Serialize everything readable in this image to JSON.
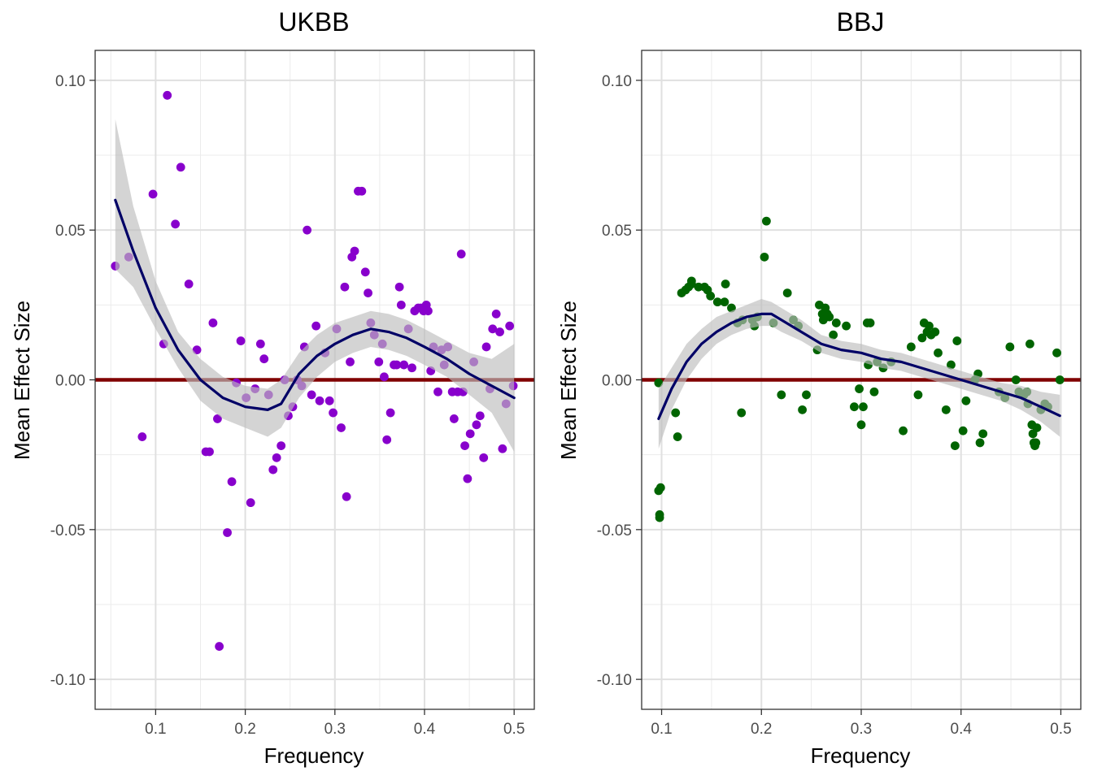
{
  "chart_data": [
    {
      "type": "scatter",
      "title": "UKBB",
      "xlabel": "Frequency",
      "ylabel": "Mean Effect Size",
      "xlim": [
        0.0325,
        0.5225
      ],
      "ylim": [
        -0.11,
        0.11
      ],
      "xticks": [
        "0.1",
        "0.2",
        "0.3",
        "0.4",
        "0.5"
      ],
      "xtick_values": [
        0.1,
        0.2,
        0.3,
        0.4,
        0.5
      ],
      "yticks": [
        "-0.10",
        "-0.05",
        "0.00",
        "0.05",
        "0.10"
      ],
      "ytick_values": [
        -0.1,
        -0.05,
        0.0,
        0.05,
        0.1
      ],
      "grid": true,
      "reference_line": {
        "y": 0.0,
        "color": "#800000"
      },
      "point_color": "#8800cc",
      "smooth_color": "#000066",
      "band_color": "#bdbdbd",
      "points": [
        [
          0.055,
          0.038
        ],
        [
          0.07,
          0.041
        ],
        [
          0.085,
          -0.019
        ],
        [
          0.097,
          0.062
        ],
        [
          0.109,
          0.012
        ],
        [
          0.113,
          0.095
        ],
        [
          0.122,
          0.052
        ],
        [
          0.128,
          0.071
        ],
        [
          0.137,
          0.032
        ],
        [
          0.146,
          0.01
        ],
        [
          0.156,
          -0.024
        ],
        [
          0.16,
          -0.024
        ],
        [
          0.164,
          0.019
        ],
        [
          0.169,
          -0.013
        ],
        [
          0.171,
          -0.089
        ],
        [
          0.18,
          -0.051
        ],
        [
          0.185,
          -0.034
        ],
        [
          0.19,
          -0.001
        ],
        [
          0.195,
          0.013
        ],
        [
          0.201,
          -0.006
        ],
        [
          0.206,
          -0.041
        ],
        [
          0.211,
          -0.003
        ],
        [
          0.217,
          0.012
        ],
        [
          0.221,
          0.007
        ],
        [
          0.226,
          -0.005
        ],
        [
          0.231,
          -0.03
        ],
        [
          0.235,
          -0.026
        ],
        [
          0.24,
          -0.022
        ],
        [
          0.244,
          0.0
        ],
        [
          0.248,
          -0.012
        ],
        [
          0.253,
          -0.009
        ],
        [
          0.258,
          0.0
        ],
        [
          0.263,
          -0.002
        ],
        [
          0.266,
          0.011
        ],
        [
          0.269,
          0.05
        ],
        [
          0.274,
          -0.005
        ],
        [
          0.279,
          0.018
        ],
        [
          0.283,
          -0.007
        ],
        [
          0.289,
          0.009
        ],
        [
          0.294,
          -0.007
        ],
        [
          0.298,
          -0.011
        ],
        [
          0.302,
          0.017
        ],
        [
          0.307,
          -0.016
        ],
        [
          0.311,
          0.031
        ],
        [
          0.313,
          -0.039
        ],
        [
          0.317,
          0.006
        ],
        [
          0.319,
          0.041
        ],
        [
          0.322,
          0.043
        ],
        [
          0.326,
          0.063
        ],
        [
          0.33,
          0.063
        ],
        [
          0.334,
          0.036
        ],
        [
          0.337,
          0.029
        ],
        [
          0.34,
          0.019
        ],
        [
          0.344,
          0.015
        ],
        [
          0.349,
          0.006
        ],
        [
          0.353,
          0.012
        ],
        [
          0.355,
          0.001
        ],
        [
          0.358,
          -0.02
        ],
        [
          0.362,
          -0.011
        ],
        [
          0.366,
          0.005
        ],
        [
          0.369,
          0.005
        ],
        [
          0.372,
          0.031
        ],
        [
          0.374,
          0.025
        ],
        [
          0.377,
          0.005
        ],
        [
          0.382,
          0.017
        ],
        [
          0.386,
          0.004
        ],
        [
          0.389,
          0.023
        ],
        [
          0.393,
          0.024
        ],
        [
          0.396,
          0.024
        ],
        [
          0.399,
          0.023
        ],
        [
          0.402,
          0.025
        ],
        [
          0.404,
          0.023
        ],
        [
          0.407,
          0.003
        ],
        [
          0.41,
          0.011
        ],
        [
          0.415,
          -0.004
        ],
        [
          0.419,
          0.01
        ],
        [
          0.422,
          0.005
        ],
        [
          0.426,
          0.011
        ],
        [
          0.431,
          -0.004
        ],
        [
          0.433,
          -0.013
        ],
        [
          0.437,
          -0.004
        ],
        [
          0.441,
          0.042
        ],
        [
          0.443,
          -0.004
        ],
        [
          0.445,
          -0.022
        ],
        [
          0.448,
          -0.033
        ],
        [
          0.451,
          -0.018
        ],
        [
          0.455,
          0.006
        ],
        [
          0.458,
          -0.015
        ],
        [
          0.462,
          -0.012
        ],
        [
          0.466,
          -0.026
        ],
        [
          0.469,
          0.011
        ],
        [
          0.473,
          -0.003
        ],
        [
          0.476,
          0.017
        ],
        [
          0.48,
          0.022
        ],
        [
          0.484,
          0.016
        ],
        [
          0.487,
          -0.023
        ],
        [
          0.491,
          -0.008
        ],
        [
          0.495,
          0.018
        ],
        [
          0.499,
          -0.002
        ]
      ],
      "smooth": [
        [
          0.055,
          0.06
        ],
        [
          0.075,
          0.043
        ],
        [
          0.1,
          0.024
        ],
        [
          0.125,
          0.01
        ],
        [
          0.15,
          0.0
        ],
        [
          0.175,
          -0.006
        ],
        [
          0.2,
          -0.009
        ],
        [
          0.225,
          -0.01
        ],
        [
          0.24,
          -0.008
        ],
        [
          0.26,
          0.002
        ],
        [
          0.28,
          0.008
        ],
        [
          0.3,
          0.012
        ],
        [
          0.32,
          0.015
        ],
        [
          0.34,
          0.017
        ],
        [
          0.36,
          0.016
        ],
        [
          0.38,
          0.014
        ],
        [
          0.4,
          0.011
        ],
        [
          0.425,
          0.007
        ],
        [
          0.45,
          0.002
        ],
        [
          0.475,
          -0.002
        ],
        [
          0.5,
          -0.006
        ]
      ],
      "band": [
        [
          0.055,
          0.037,
          0.087
        ],
        [
          0.075,
          0.031,
          0.058
        ],
        [
          0.1,
          0.017,
          0.033
        ],
        [
          0.125,
          0.004,
          0.016
        ],
        [
          0.15,
          -0.007,
          0.007
        ],
        [
          0.175,
          -0.013,
          0.001
        ],
        [
          0.2,
          -0.016,
          -0.002
        ],
        [
          0.225,
          -0.019,
          -0.003
        ],
        [
          0.24,
          -0.016,
          0.0
        ],
        [
          0.26,
          -0.006,
          0.009
        ],
        [
          0.28,
          0.001,
          0.015
        ],
        [
          0.3,
          0.006,
          0.019
        ],
        [
          0.32,
          0.009,
          0.021
        ],
        [
          0.34,
          0.011,
          0.023
        ],
        [
          0.36,
          0.01,
          0.022
        ],
        [
          0.38,
          0.008,
          0.02
        ],
        [
          0.4,
          0.005,
          0.017
        ],
        [
          0.425,
          0.001,
          0.013
        ],
        [
          0.45,
          -0.005,
          0.009
        ],
        [
          0.475,
          -0.011,
          0.007
        ],
        [
          0.5,
          -0.024,
          0.012
        ]
      ]
    },
    {
      "type": "scatter",
      "title": "BBJ",
      "xlabel": "Frequency",
      "ylabel": "Mean Effect Size",
      "xlim": [
        0.08,
        0.52
      ],
      "ylim": [
        -0.11,
        0.11
      ],
      "xticks": [
        "0.1",
        "0.2",
        "0.3",
        "0.4",
        "0.5"
      ],
      "xtick_values": [
        0.1,
        0.2,
        0.3,
        0.4,
        0.5
      ],
      "yticks": [
        "-0.10",
        "-0.05",
        "0.00",
        "0.05",
        "0.10"
      ],
      "ytick_values": [
        -0.1,
        -0.05,
        0.0,
        0.05,
        0.1
      ],
      "grid": true,
      "reference_line": {
        "y": 0.0,
        "color": "#800000"
      },
      "point_color": "#006400",
      "smooth_color": "#000066",
      "band_color": "#bdbdbd",
      "points": [
        [
          0.097,
          -0.001
        ],
        [
          0.097,
          -0.037
        ],
        [
          0.098,
          -0.045
        ],
        [
          0.098,
          -0.046
        ],
        [
          0.099,
          -0.036
        ],
        [
          0.114,
          -0.011
        ],
        [
          0.116,
          -0.019
        ],
        [
          0.12,
          0.029
        ],
        [
          0.124,
          0.03
        ],
        [
          0.127,
          0.031
        ],
        [
          0.13,
          0.032
        ],
        [
          0.13,
          0.033
        ],
        [
          0.137,
          0.031
        ],
        [
          0.143,
          0.031
        ],
        [
          0.146,
          0.03
        ],
        [
          0.149,
          0.028
        ],
        [
          0.156,
          0.026
        ],
        [
          0.163,
          0.026
        ],
        [
          0.164,
          0.032
        ],
        [
          0.17,
          0.024
        ],
        [
          0.176,
          0.019
        ],
        [
          0.18,
          -0.011
        ],
        [
          0.181,
          0.02
        ],
        [
          0.191,
          0.02
        ],
        [
          0.193,
          0.018
        ],
        [
          0.196,
          0.021
        ],
        [
          0.203,
          0.041
        ],
        [
          0.205,
          0.053
        ],
        [
          0.212,
          0.019
        ],
        [
          0.22,
          -0.005
        ],
        [
          0.226,
          0.029
        ],
        [
          0.232,
          0.02
        ],
        [
          0.237,
          0.018
        ],
        [
          0.241,
          -0.01
        ],
        [
          0.245,
          -0.005
        ],
        [
          0.256,
          0.01
        ],
        [
          0.258,
          0.025
        ],
        [
          0.261,
          0.022
        ],
        [
          0.262,
          0.02
        ],
        [
          0.264,
          0.024
        ],
        [
          0.266,
          0.022
        ],
        [
          0.268,
          0.021
        ],
        [
          0.272,
          0.015
        ],
        [
          0.275,
          0.019
        ],
        [
          0.285,
          0.018
        ],
        [
          0.293,
          -0.009
        ],
        [
          0.298,
          -0.003
        ],
        [
          0.3,
          -0.015
        ],
        [
          0.302,
          -0.009
        ],
        [
          0.306,
          0.019
        ],
        [
          0.307,
          0.005
        ],
        [
          0.309,
          0.019
        ],
        [
          0.313,
          -0.004
        ],
        [
          0.316,
          0.006
        ],
        [
          0.322,
          0.004
        ],
        [
          0.33,
          0.006
        ],
        [
          0.342,
          -0.017
        ],
        [
          0.35,
          0.011
        ],
        [
          0.357,
          -0.005
        ],
        [
          0.361,
          0.014
        ],
        [
          0.363,
          0.019
        ],
        [
          0.366,
          0.016
        ],
        [
          0.368,
          0.018
        ],
        [
          0.37,
          0.015
        ],
        [
          0.374,
          0.016
        ],
        [
          0.377,
          0.009
        ],
        [
          0.385,
          -0.01
        ],
        [
          0.39,
          0.005
        ],
        [
          0.394,
          -0.022
        ],
        [
          0.396,
          0.013
        ],
        [
          0.402,
          -0.017
        ],
        [
          0.405,
          -0.007
        ],
        [
          0.414,
          0.0
        ],
        [
          0.417,
          0.002
        ],
        [
          0.419,
          -0.021
        ],
        [
          0.422,
          -0.018
        ],
        [
          0.438,
          -0.004
        ],
        [
          0.444,
          -0.006
        ],
        [
          0.449,
          0.011
        ],
        [
          0.455,
          0.0
        ],
        [
          0.458,
          -0.004
        ],
        [
          0.463,
          -0.005
        ],
        [
          0.466,
          -0.004
        ],
        [
          0.467,
          -0.008
        ],
        [
          0.469,
          0.012
        ],
        [
          0.471,
          -0.015
        ],
        [
          0.472,
          -0.018
        ],
        [
          0.473,
          -0.021
        ],
        [
          0.474,
          -0.022
        ],
        [
          0.475,
          -0.021
        ],
        [
          0.476,
          -0.016
        ],
        [
          0.48,
          -0.01
        ],
        [
          0.484,
          -0.008
        ],
        [
          0.487,
          -0.009
        ],
        [
          0.496,
          0.009
        ],
        [
          0.499,
          0.0
        ]
      ],
      "smooth": [
        [
          0.097,
          -0.013
        ],
        [
          0.11,
          -0.003
        ],
        [
          0.125,
          0.006
        ],
        [
          0.14,
          0.012
        ],
        [
          0.155,
          0.016
        ],
        [
          0.17,
          0.019
        ],
        [
          0.185,
          0.021
        ],
        [
          0.2,
          0.022
        ],
        [
          0.21,
          0.022
        ],
        [
          0.22,
          0.02
        ],
        [
          0.24,
          0.016
        ],
        [
          0.26,
          0.012
        ],
        [
          0.28,
          0.01
        ],
        [
          0.3,
          0.009
        ],
        [
          0.32,
          0.007
        ],
        [
          0.34,
          0.006
        ],
        [
          0.36,
          0.004
        ],
        [
          0.38,
          0.002
        ],
        [
          0.4,
          0.0
        ],
        [
          0.42,
          -0.002
        ],
        [
          0.44,
          -0.004
        ],
        [
          0.46,
          -0.006
        ],
        [
          0.48,
          -0.009
        ],
        [
          0.499,
          -0.012
        ]
      ],
      "band": [
        [
          0.097,
          -0.023,
          -0.003
        ],
        [
          0.11,
          -0.01,
          0.004
        ],
        [
          0.125,
          0.0,
          0.012
        ],
        [
          0.14,
          0.007,
          0.017
        ],
        [
          0.155,
          0.012,
          0.021
        ],
        [
          0.17,
          0.015,
          0.023
        ],
        [
          0.185,
          0.017,
          0.025
        ],
        [
          0.2,
          0.018,
          0.027
        ],
        [
          0.21,
          0.018,
          0.026
        ],
        [
          0.22,
          0.016,
          0.024
        ],
        [
          0.24,
          0.013,
          0.02
        ],
        [
          0.26,
          0.009,
          0.015
        ],
        [
          0.28,
          0.007,
          0.013
        ],
        [
          0.3,
          0.006,
          0.012
        ],
        [
          0.32,
          0.004,
          0.01
        ],
        [
          0.34,
          0.003,
          0.009
        ],
        [
          0.36,
          0.001,
          0.007
        ],
        [
          0.38,
          -0.001,
          0.005
        ],
        [
          0.4,
          -0.003,
          0.003
        ],
        [
          0.42,
          -0.005,
          0.001
        ],
        [
          0.44,
          -0.007,
          -0.001
        ],
        [
          0.46,
          -0.01,
          -0.002
        ],
        [
          0.48,
          -0.014,
          -0.004
        ],
        [
          0.499,
          -0.019,
          -0.005
        ]
      ]
    }
  ]
}
